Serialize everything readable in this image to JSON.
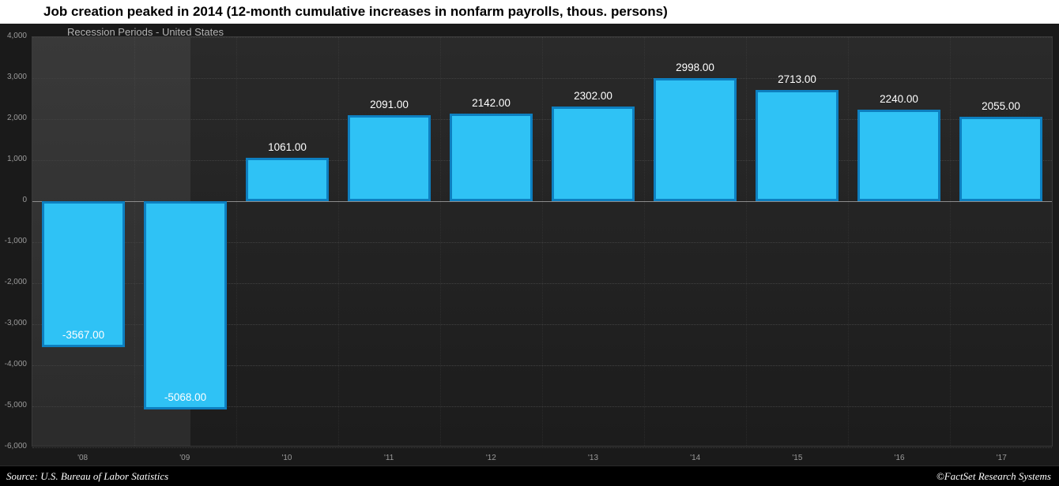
{
  "header": {
    "title": "Job creation peaked in 2014 (12-month cumulative increases in nonfarm payrolls, thous. persons)",
    "subtitle": "Recession Periods - United States"
  },
  "footer": {
    "source": "Source: U.S. Bureau of Labor Statistics",
    "credit": "©FactSet Research Systems"
  },
  "colors": {
    "bar_fill": "#2fc2f5",
    "bar_border": "#0d7fc0",
    "background": "#1a1a1a",
    "title_band": "#ffffff",
    "footer_band": "#000000",
    "axis_text": "#9b9b9b",
    "zero_line": "#8c8c8c"
  },
  "chart_data": {
    "type": "bar",
    "title": "Job creation peaked in 2014 (12-month cumulative increases in nonfarm payrolls, thous. persons)",
    "subtitle": "Recession Periods - United States",
    "categories": [
      "'08",
      "'09",
      "'10",
      "'11",
      "'12",
      "'13",
      "'14",
      "'15",
      "'16",
      "'17"
    ],
    "values": [
      -3567,
      -5068,
      1061,
      2091,
      2142,
      2302,
      2998,
      2713,
      2240,
      2055
    ],
    "labels": [
      "-3567.00",
      "-5068.00",
      "1061.00",
      "2091.00",
      "2142.00",
      "2302.00",
      "2998.00",
      "2713.00",
      "2240.00",
      "2055.00"
    ],
    "xlabel": "",
    "ylabel": "",
    "ylim": [
      -6000,
      4000
    ],
    "ytick_interval": 1000,
    "ytick_labels": [
      "4,000",
      "3,000",
      "2,000",
      "1,000",
      "0",
      "-1,000",
      "-2,000",
      "-3,000",
      "-4,000",
      "-5,000",
      "-6,000"
    ],
    "grid": true,
    "legend": false,
    "bar_fill": "#2fc2f5",
    "bar_border": "#0d7fc0",
    "recession_band": {
      "start_frac": 0.0,
      "end_frac": 0.155
    }
  }
}
